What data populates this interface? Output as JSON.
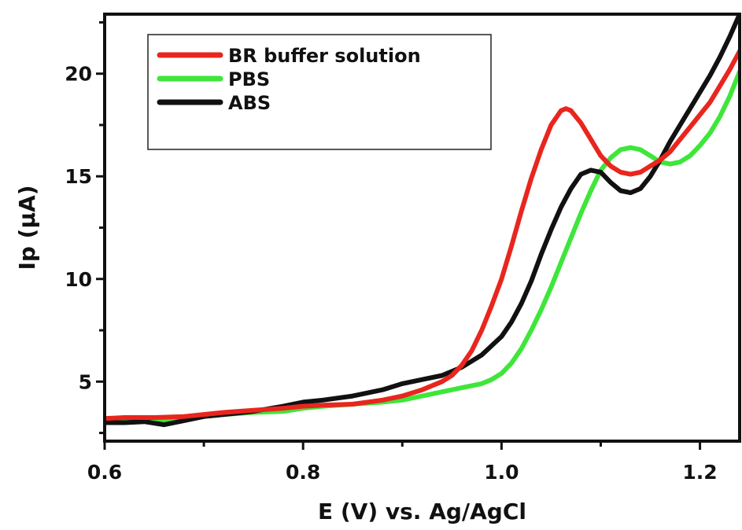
{
  "chart_data": {
    "type": "line",
    "title": "",
    "xlabel": "E (V) vs. Ag/AgCl",
    "ylabel": "Ip (μA)",
    "xlim": [
      0.6,
      1.24
    ],
    "ylim": [
      2.1,
      22.9
    ],
    "xticks": [
      0.6,
      0.8,
      1.0,
      1.2
    ],
    "xtick_labels": [
      "0.6",
      "0.8",
      "1.0",
      "1.2"
    ],
    "yticks": [
      5,
      10,
      15,
      20
    ],
    "ytick_labels": [
      "5",
      "10",
      "15",
      "20"
    ],
    "grid": false,
    "legend_position": "top-left",
    "series": [
      {
        "name": "BR buffer solution",
        "color": "#e8261e",
        "x": [
          0.6,
          0.62,
          0.65,
          0.68,
          0.7,
          0.72,
          0.75,
          0.78,
          0.8,
          0.82,
          0.85,
          0.88,
          0.9,
          0.92,
          0.94,
          0.95,
          0.96,
          0.97,
          0.98,
          0.99,
          1.0,
          1.01,
          1.02,
          1.03,
          1.04,
          1.05,
          1.06,
          1.065,
          1.07,
          1.08,
          1.09,
          1.1,
          1.11,
          1.12,
          1.13,
          1.14,
          1.15,
          1.16,
          1.17,
          1.18,
          1.19,
          1.2,
          1.21,
          1.22,
          1.23,
          1.24
        ],
        "y": [
          3.2,
          3.25,
          3.25,
          3.3,
          3.4,
          3.5,
          3.6,
          3.7,
          3.8,
          3.85,
          3.9,
          4.1,
          4.3,
          4.6,
          5.0,
          5.3,
          5.8,
          6.5,
          7.5,
          8.7,
          10.0,
          11.6,
          13.3,
          14.9,
          16.3,
          17.5,
          18.2,
          18.3,
          18.2,
          17.6,
          16.8,
          16.0,
          15.5,
          15.2,
          15.1,
          15.2,
          15.5,
          15.8,
          16.2,
          16.8,
          17.4,
          18.0,
          18.6,
          19.4,
          20.2,
          21.1
        ]
      },
      {
        "name": "PBS",
        "color": "#3ee63a",
        "x": [
          0.6,
          0.62,
          0.65,
          0.68,
          0.7,
          0.72,
          0.75,
          0.78,
          0.8,
          0.82,
          0.85,
          0.88,
          0.9,
          0.92,
          0.94,
          0.96,
          0.98,
          0.99,
          1.0,
          1.01,
          1.02,
          1.03,
          1.04,
          1.05,
          1.06,
          1.07,
          1.08,
          1.09,
          1.1,
          1.11,
          1.12,
          1.13,
          1.14,
          1.15,
          1.16,
          1.17,
          1.18,
          1.19,
          1.2,
          1.21,
          1.22,
          1.23,
          1.24
        ],
        "y": [
          3.0,
          3.05,
          3.1,
          3.2,
          3.3,
          3.4,
          3.5,
          3.55,
          3.7,
          3.8,
          3.9,
          4.0,
          4.1,
          4.3,
          4.5,
          4.7,
          4.9,
          5.1,
          5.4,
          5.9,
          6.6,
          7.5,
          8.5,
          9.6,
          10.8,
          12.0,
          13.2,
          14.3,
          15.3,
          15.9,
          16.3,
          16.4,
          16.3,
          16.0,
          15.7,
          15.6,
          15.7,
          16.0,
          16.5,
          17.1,
          17.9,
          18.9,
          20.1
        ]
      },
      {
        "name": "ABS",
        "color": "#111111",
        "x": [
          0.6,
          0.62,
          0.64,
          0.66,
          0.68,
          0.7,
          0.72,
          0.75,
          0.78,
          0.8,
          0.82,
          0.85,
          0.88,
          0.9,
          0.92,
          0.94,
          0.96,
          0.98,
          1.0,
          1.01,
          1.02,
          1.03,
          1.04,
          1.05,
          1.06,
          1.07,
          1.08,
          1.09,
          1.1,
          1.11,
          1.12,
          1.13,
          1.14,
          1.15,
          1.16,
          1.17,
          1.18,
          1.19,
          1.2,
          1.21,
          1.22,
          1.23,
          1.24
        ],
        "y": [
          3.0,
          3.0,
          3.05,
          2.9,
          3.1,
          3.3,
          3.4,
          3.55,
          3.8,
          4.0,
          4.1,
          4.3,
          4.6,
          4.9,
          5.1,
          5.3,
          5.7,
          6.3,
          7.2,
          7.9,
          8.8,
          9.9,
          11.2,
          12.4,
          13.5,
          14.4,
          15.1,
          15.3,
          15.2,
          14.7,
          14.3,
          14.2,
          14.4,
          15.0,
          15.8,
          16.7,
          17.5,
          18.3,
          19.1,
          19.9,
          20.8,
          21.8,
          22.9
        ]
      }
    ]
  }
}
